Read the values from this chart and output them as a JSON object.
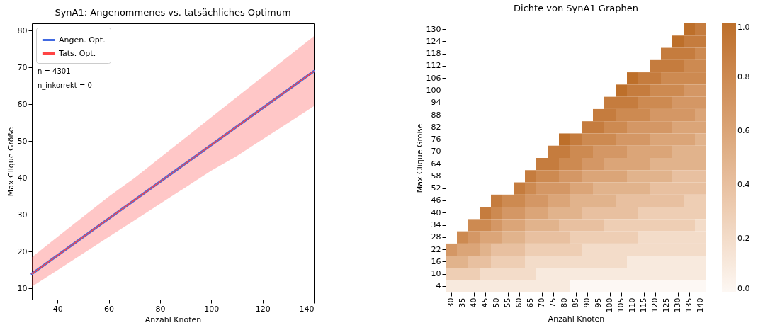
{
  "chart_data": [
    {
      "type": "line",
      "title": "SynA1: Angenommenes vs. tatsächliches Optimum",
      "xlabel": "Anzahl Knoten",
      "ylabel": "Max Clique Größe",
      "x": [
        30,
        40,
        50,
        60,
        70,
        80,
        90,
        100,
        110,
        120,
        130,
        140
      ],
      "series": [
        {
          "name": "Angen. Opt.",
          "color": "#4169e1",
          "values": [
            14,
            19,
            24,
            29,
            34,
            39,
            44,
            49,
            54,
            59,
            64,
            69
          ]
        },
        {
          "name": "Tats. Opt.",
          "color": "#ff4444",
          "values": [
            14,
            19,
            24,
            29,
            34,
            39,
            44,
            49,
            54,
            59,
            64,
            69
          ],
          "lower": [
            10.5,
            15,
            19.5,
            24,
            28.5,
            33,
            37.5,
            42,
            46,
            50.5,
            55,
            59.5
          ],
          "upper": [
            18.5,
            24,
            29.5,
            35,
            40,
            45.5,
            51,
            56.5,
            62,
            67.5,
            73,
            78.5
          ]
        }
      ],
      "xlim": [
        30,
        140
      ],
      "xticks": [
        40,
        60,
        80,
        100,
        120,
        140
      ],
      "ylim": [
        7,
        82
      ],
      "yticks": [
        10,
        20,
        30,
        40,
        50,
        60,
        70,
        80
      ],
      "legend": "top left",
      "grid": false,
      "annotations": [
        "n = 4301",
        "n_inkorrekt = 0"
      ]
    },
    {
      "type": "heatmap",
      "title": "Dichte von SynA1 Graphen",
      "xlabel": "Anzahl Knoten",
      "ylabel": "Max Clique Größe",
      "categories": [
        "30",
        "35",
        "40",
        "45",
        "50",
        "55",
        "60",
        "65",
        "70",
        "75",
        "80",
        "85",
        "90",
        "95",
        "100",
        "105",
        "110",
        "115",
        "120",
        "125",
        "130",
        "135",
        "140"
      ],
      "y_categories": [
        "130",
        "124",
        "118",
        "112",
        "106",
        "100",
        "94",
        "88",
        "82",
        "76",
        "70",
        "64",
        "58",
        "52",
        "46",
        "40",
        "34",
        "28",
        "22",
        "16",
        "10",
        "4"
      ],
      "cells": [
        [
          null,
          null,
          null,
          null,
          null,
          null,
          null,
          null,
          null,
          null,
          null,
          null,
          null,
          null,
          null,
          null,
          null,
          null,
          null,
          null,
          null,
          1.0,
          0.9
        ],
        [
          null,
          null,
          null,
          null,
          null,
          null,
          null,
          null,
          null,
          null,
          null,
          null,
          null,
          null,
          null,
          null,
          null,
          null,
          null,
          null,
          1.0,
          0.9,
          0.9
        ],
        [
          null,
          null,
          null,
          null,
          null,
          null,
          null,
          null,
          null,
          null,
          null,
          null,
          null,
          null,
          null,
          null,
          null,
          null,
          null,
          0.9,
          0.9,
          0.9,
          0.8
        ],
        [
          null,
          null,
          null,
          null,
          null,
          null,
          null,
          null,
          null,
          null,
          null,
          null,
          null,
          null,
          null,
          null,
          null,
          null,
          0.9,
          0.9,
          0.9,
          0.8,
          0.8
        ],
        [
          null,
          null,
          null,
          null,
          null,
          null,
          null,
          null,
          null,
          null,
          null,
          null,
          null,
          null,
          null,
          null,
          1.0,
          0.9,
          0.9,
          0.8,
          0.8,
          0.8,
          0.8
        ],
        [
          null,
          null,
          null,
          null,
          null,
          null,
          null,
          null,
          null,
          null,
          null,
          null,
          null,
          null,
          null,
          1.0,
          0.9,
          0.9,
          0.8,
          0.8,
          0.8,
          0.7,
          0.7
        ],
        [
          null,
          null,
          null,
          null,
          null,
          null,
          null,
          null,
          null,
          null,
          null,
          null,
          null,
          null,
          0.9,
          0.9,
          0.9,
          0.8,
          0.8,
          0.8,
          0.7,
          0.7,
          0.7
        ],
        [
          null,
          null,
          null,
          null,
          null,
          null,
          null,
          null,
          null,
          null,
          null,
          null,
          null,
          0.9,
          0.9,
          0.8,
          0.8,
          0.8,
          0.7,
          0.7,
          0.7,
          0.7,
          0.6
        ],
        [
          null,
          null,
          null,
          null,
          null,
          null,
          null,
          null,
          null,
          null,
          null,
          null,
          0.9,
          0.9,
          0.8,
          0.8,
          0.7,
          0.7,
          0.7,
          0.7,
          0.6,
          0.6,
          0.6
        ],
        [
          null,
          null,
          null,
          null,
          null,
          null,
          null,
          null,
          null,
          null,
          1.0,
          0.9,
          0.8,
          0.8,
          0.8,
          0.7,
          0.7,
          0.7,
          0.6,
          0.6,
          0.6,
          0.6,
          0.5
        ],
        [
          null,
          null,
          null,
          null,
          null,
          null,
          null,
          null,
          null,
          0.9,
          0.9,
          0.8,
          0.8,
          0.7,
          0.7,
          0.7,
          0.6,
          0.6,
          0.6,
          0.6,
          0.5,
          0.5,
          0.5
        ],
        [
          null,
          null,
          null,
          null,
          null,
          null,
          null,
          null,
          0.9,
          0.9,
          0.8,
          0.8,
          0.7,
          0.7,
          0.6,
          0.6,
          0.6,
          0.6,
          0.5,
          0.5,
          0.5,
          0.5,
          0.5
        ],
        [
          null,
          null,
          null,
          null,
          null,
          null,
          null,
          0.9,
          0.8,
          0.8,
          0.7,
          0.7,
          0.6,
          0.6,
          0.6,
          0.6,
          0.5,
          0.5,
          0.5,
          0.5,
          0.4,
          0.4,
          0.4
        ],
        [
          null,
          null,
          null,
          null,
          null,
          null,
          0.9,
          0.8,
          0.7,
          0.7,
          0.7,
          0.6,
          0.6,
          0.5,
          0.5,
          0.5,
          0.5,
          0.5,
          0.4,
          0.4,
          0.4,
          0.4,
          0.4
        ],
        [
          null,
          null,
          null,
          null,
          0.9,
          0.8,
          0.8,
          0.7,
          0.7,
          0.6,
          0.6,
          0.5,
          0.5,
          0.5,
          0.5,
          0.4,
          0.4,
          0.4,
          0.4,
          0.4,
          0.4,
          0.3,
          0.3
        ],
        [
          null,
          null,
          null,
          0.9,
          0.8,
          0.7,
          0.7,
          0.6,
          0.6,
          0.5,
          0.5,
          0.5,
          0.4,
          0.4,
          0.4,
          0.4,
          0.4,
          0.3,
          0.3,
          0.3,
          0.3,
          0.3,
          0.3
        ],
        [
          null,
          null,
          0.8,
          0.8,
          0.7,
          0.6,
          0.6,
          0.5,
          0.5,
          0.5,
          0.4,
          0.4,
          0.4,
          0.4,
          0.3,
          0.3,
          0.3,
          0.3,
          0.3,
          0.3,
          0.3,
          0.3,
          0.2
        ],
        [
          null,
          0.8,
          0.7,
          0.6,
          0.6,
          0.5,
          0.5,
          0.4,
          0.4,
          0.4,
          0.4,
          0.3,
          0.3,
          0.3,
          0.3,
          0.3,
          0.3,
          0.2,
          0.2,
          0.2,
          0.2,
          0.2,
          0.2
        ],
        [
          0.7,
          0.6,
          0.6,
          0.5,
          0.4,
          0.4,
          0.4,
          0.3,
          0.3,
          0.3,
          0.3,
          0.3,
          0.2,
          0.2,
          0.2,
          0.2,
          0.2,
          0.2,
          0.2,
          0.2,
          0.2,
          0.2,
          0.2
        ],
        [
          0.5,
          0.5,
          0.4,
          0.4,
          0.3,
          0.3,
          0.3,
          0.2,
          0.2,
          0.2,
          0.2,
          0.2,
          0.2,
          0.2,
          0.2,
          0.2,
          0.1,
          0.1,
          0.1,
          0.1,
          0.1,
          0.1,
          0.1
        ],
        [
          0.3,
          0.3,
          0.3,
          0.2,
          0.2,
          0.2,
          0.2,
          0.2,
          0.1,
          0.1,
          0.1,
          0.1,
          0.1,
          0.1,
          0.1,
          0.1,
          0.1,
          0.1,
          0.1,
          0.1,
          0.1,
          0.1,
          0.1
        ],
        [
          0.1,
          0.1,
          0.1,
          0.1,
          0.1,
          0.1,
          0.1,
          0.1,
          0.1,
          0.1,
          0.1,
          0.0,
          0.0,
          0.0,
          0.0,
          0.0,
          0.0,
          0.0,
          0.0,
          0.0,
          0.0,
          0.0,
          0.0
        ]
      ],
      "clim": [
        0,
        1
      ],
      "cticks": [
        {
          "value": 0,
          "label": "0.0"
        },
        0.2,
        0.4,
        0.6,
        0.8,
        {
          "value": 1,
          "label": "1.0"
        }
      ],
      "colors": [
        "#fdf8f4",
        "#bd6f2a"
      ]
    }
  ]
}
